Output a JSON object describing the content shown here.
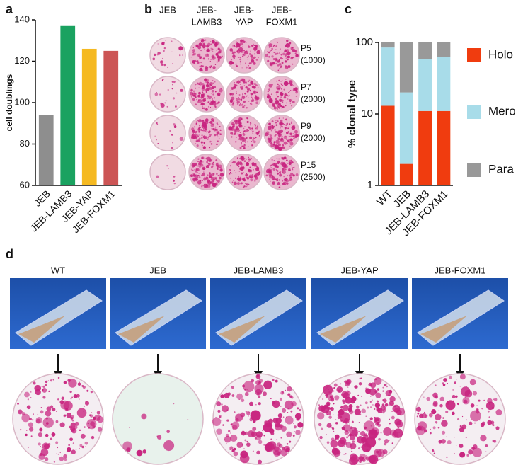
{
  "chart_data": [
    {
      "type": "bar",
      "panel_label": "a",
      "ylabel": "cell doublings",
      "categories": [
        "JEB",
        "JEB-LAMB3",
        "JEB-YAP",
        "JEB-FOXM1"
      ],
      "values": [
        94,
        137,
        126,
        125
      ],
      "colors": [
        "#8e8e8e",
        "#1aa260",
        "#f5b921",
        "#cc5555"
      ],
      "ylim": [
        60,
        140
      ],
      "yticks": [
        60,
        80,
        100,
        120,
        140
      ]
    },
    {
      "type": "stacked-bar",
      "panel_label": "c",
      "ylabel": "% clonal type",
      "log_scale": true,
      "legend": "right",
      "categories": [
        "WT",
        "JEB",
        "JEB-LAMB3",
        "JEB-FOXM1"
      ],
      "series": [
        {
          "name": "Holo",
          "color": "#f03c0f",
          "values": [
            13,
            2,
            11,
            11
          ]
        },
        {
          "name": "Mero",
          "color": "#a8dce9",
          "values": [
            72,
            18,
            47,
            51
          ]
        },
        {
          "name": "Para",
          "color": "#999999",
          "values": [
            15,
            80,
            42,
            38
          ]
        }
      ],
      "ylim": [
        1,
        100
      ],
      "yticks": [
        1,
        10,
        100
      ]
    }
  ],
  "panel_b": {
    "label": "b",
    "columns": [
      [
        "JEB"
      ],
      [
        "JEB-",
        "LAMB3"
      ],
      [
        "JEB-",
        "YAP"
      ],
      [
        "JEB-",
        "FOXM1"
      ]
    ],
    "rows": [
      [
        "P5",
        "(1000)"
      ],
      [
        "P7",
        "(2000)"
      ],
      [
        "P9",
        "(2000)"
      ],
      [
        "P15",
        "(2500)"
      ]
    ]
  },
  "panel_d": {
    "label": "d",
    "columns": [
      "WT",
      "JEB",
      "JEB-LAMB3",
      "JEB-YAP",
      "JEB-FOXM1"
    ]
  }
}
